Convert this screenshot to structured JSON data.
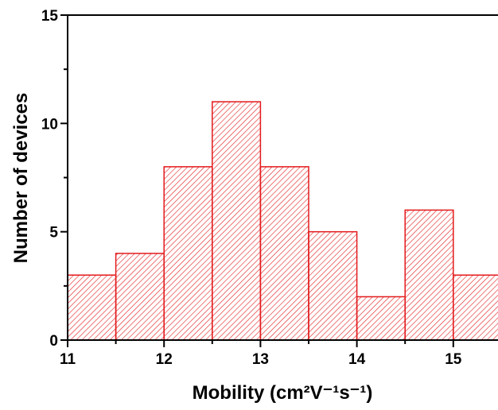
{
  "chart_data": {
    "type": "bar",
    "subtype": "histogram",
    "bin_edges": [
      11.0,
      11.5,
      12.0,
      12.5,
      13.0,
      13.5,
      14.0,
      14.5,
      15.0,
      15.5
    ],
    "values": [
      3,
      4,
      8,
      11,
      8,
      5,
      2,
      6,
      3
    ],
    "x_ticks": [
      "11",
      "12",
      "13",
      "14",
      "15"
    ],
    "y_ticks": [
      "0",
      "5",
      "10",
      "15"
    ],
    "xlim": [
      11,
      15.5
    ],
    "ylim": [
      0,
      15
    ],
    "xlabel": "Mobility (cm²V⁻¹s⁻¹)",
    "ylabel": "Number of devices",
    "grid": false,
    "legend": "none",
    "bar_color": "#e31a1c",
    "fill_pattern": "diagonal-hatch"
  }
}
